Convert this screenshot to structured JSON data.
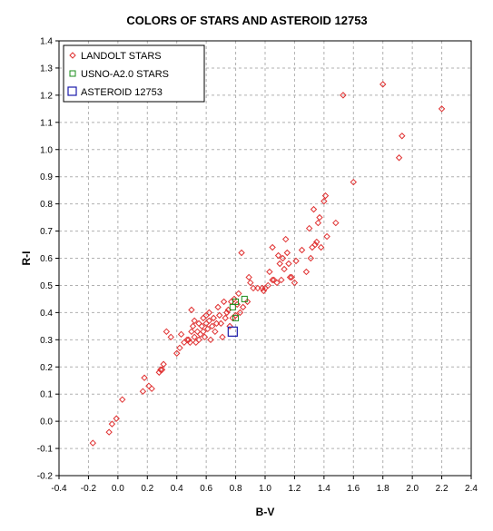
{
  "chart_data": {
    "type": "scatter",
    "title": "COLORS OF STARS AND ASTEROID 12753",
    "xlabel": "B-V",
    "ylabel": "R-I",
    "xlim": [
      -0.4,
      2.4
    ],
    "ylim": [
      -0.2,
      1.4
    ],
    "x_ticks": [
      "-0.4",
      "-0.2",
      "0.0",
      "0.2",
      "0.4",
      "0.6",
      "0.8",
      "1.0",
      "1.2",
      "1.4",
      "1.6",
      "1.8",
      "2.0",
      "2.2",
      "2.4"
    ],
    "y_ticks": [
      "-0.2",
      "-0.1",
      "0.0",
      "0.1",
      "0.2",
      "0.3",
      "0.4",
      "0.5",
      "0.6",
      "0.7",
      "0.8",
      "0.9",
      "1.0",
      "1.1",
      "1.2",
      "1.3",
      "1.4"
    ],
    "grid": true,
    "legend_position": "top-left",
    "series": [
      {
        "name": "LANDOLT STARS",
        "marker": "diamond",
        "color": "#e03030",
        "points": [
          [
            -0.17,
            -0.08
          ],
          [
            -0.06,
            -0.04
          ],
          [
            -0.04,
            -0.01
          ],
          [
            -0.01,
            0.01
          ],
          [
            0.03,
            0.08
          ],
          [
            0.17,
            0.11
          ],
          [
            0.18,
            0.16
          ],
          [
            0.21,
            0.13
          ],
          [
            0.23,
            0.12
          ],
          [
            0.28,
            0.18
          ],
          [
            0.29,
            0.19
          ],
          [
            0.3,
            0.19
          ],
          [
            0.31,
            0.21
          ],
          [
            0.33,
            0.33
          ],
          [
            0.36,
            0.31
          ],
          [
            0.4,
            0.25
          ],
          [
            0.42,
            0.27
          ],
          [
            0.43,
            0.32
          ],
          [
            0.45,
            0.29
          ],
          [
            0.47,
            0.3
          ],
          [
            0.48,
            0.3
          ],
          [
            0.49,
            0.29
          ],
          [
            0.5,
            0.33
          ],
          [
            0.5,
            0.41
          ],
          [
            0.51,
            0.35
          ],
          [
            0.52,
            0.37
          ],
          [
            0.52,
            0.31
          ],
          [
            0.53,
            0.29
          ],
          [
            0.54,
            0.33
          ],
          [
            0.55,
            0.3
          ],
          [
            0.55,
            0.36
          ],
          [
            0.56,
            0.32
          ],
          [
            0.57,
            0.35
          ],
          [
            0.58,
            0.38
          ],
          [
            0.58,
            0.33
          ],
          [
            0.59,
            0.31
          ],
          [
            0.6,
            0.36
          ],
          [
            0.6,
            0.39
          ],
          [
            0.61,
            0.34
          ],
          [
            0.62,
            0.37
          ],
          [
            0.62,
            0.4
          ],
          [
            0.63,
            0.3
          ],
          [
            0.64,
            0.35
          ],
          [
            0.65,
            0.38
          ],
          [
            0.66,
            0.33
          ],
          [
            0.67,
            0.36
          ],
          [
            0.68,
            0.42
          ],
          [
            0.69,
            0.39
          ],
          [
            0.7,
            0.36
          ],
          [
            0.71,
            0.31
          ],
          [
            0.72,
            0.44
          ],
          [
            0.73,
            0.38
          ],
          [
            0.74,
            0.4
          ],
          [
            0.75,
            0.41
          ],
          [
            0.76,
            0.35
          ],
          [
            0.77,
            0.44
          ],
          [
            0.78,
            0.38
          ],
          [
            0.79,
            0.45
          ],
          [
            0.8,
            0.39
          ],
          [
            0.81,
            0.43
          ],
          [
            0.82,
            0.47
          ],
          [
            0.83,
            0.4
          ],
          [
            0.84,
            0.62
          ],
          [
            0.85,
            0.42
          ],
          [
            0.88,
            0.44
          ],
          [
            0.89,
            0.53
          ],
          [
            0.9,
            0.51
          ],
          [
            0.92,
            0.49
          ],
          [
            0.95,
            0.49
          ],
          [
            0.98,
            0.49
          ],
          [
            0.99,
            0.48
          ],
          [
            1.0,
            0.49
          ],
          [
            1.02,
            0.5
          ],
          [
            1.03,
            0.55
          ],
          [
            1.05,
            0.52
          ],
          [
            1.05,
            0.64
          ],
          [
            1.06,
            0.52
          ],
          [
            1.08,
            0.51
          ],
          [
            1.09,
            0.61
          ],
          [
            1.1,
            0.58
          ],
          [
            1.11,
            0.52
          ],
          [
            1.12,
            0.6
          ],
          [
            1.13,
            0.56
          ],
          [
            1.14,
            0.67
          ],
          [
            1.15,
            0.62
          ],
          [
            1.16,
            0.58
          ],
          [
            1.17,
            0.53
          ],
          [
            1.18,
            0.53
          ],
          [
            1.2,
            0.51
          ],
          [
            1.21,
            0.59
          ],
          [
            1.25,
            0.63
          ],
          [
            1.28,
            0.55
          ],
          [
            1.3,
            0.71
          ],
          [
            1.31,
            0.6
          ],
          [
            1.32,
            0.64
          ],
          [
            1.33,
            0.78
          ],
          [
            1.34,
            0.65
          ],
          [
            1.35,
            0.66
          ],
          [
            1.36,
            0.73
          ],
          [
            1.37,
            0.75
          ],
          [
            1.38,
            0.64
          ],
          [
            1.4,
            0.81
          ],
          [
            1.41,
            0.83
          ],
          [
            1.42,
            0.68
          ],
          [
            1.48,
            0.73
          ],
          [
            1.53,
            1.2
          ],
          [
            1.6,
            0.88
          ],
          [
            1.8,
            1.24
          ],
          [
            1.91,
            0.97
          ],
          [
            1.93,
            1.05
          ],
          [
            2.2,
            1.15
          ]
        ]
      },
      {
        "name": "USNO-A2.0 STARS",
        "marker": "square",
        "color": "#1a8c1a",
        "points": [
          [
            0.78,
            0.42
          ],
          [
            0.8,
            0.44
          ],
          [
            0.8,
            0.38
          ],
          [
            0.86,
            0.45
          ]
        ]
      },
      {
        "name": "ASTEROID 12753",
        "marker": "square-large",
        "color": "#1a1aaa",
        "points": [
          [
            0.78,
            0.33
          ]
        ]
      }
    ]
  }
}
